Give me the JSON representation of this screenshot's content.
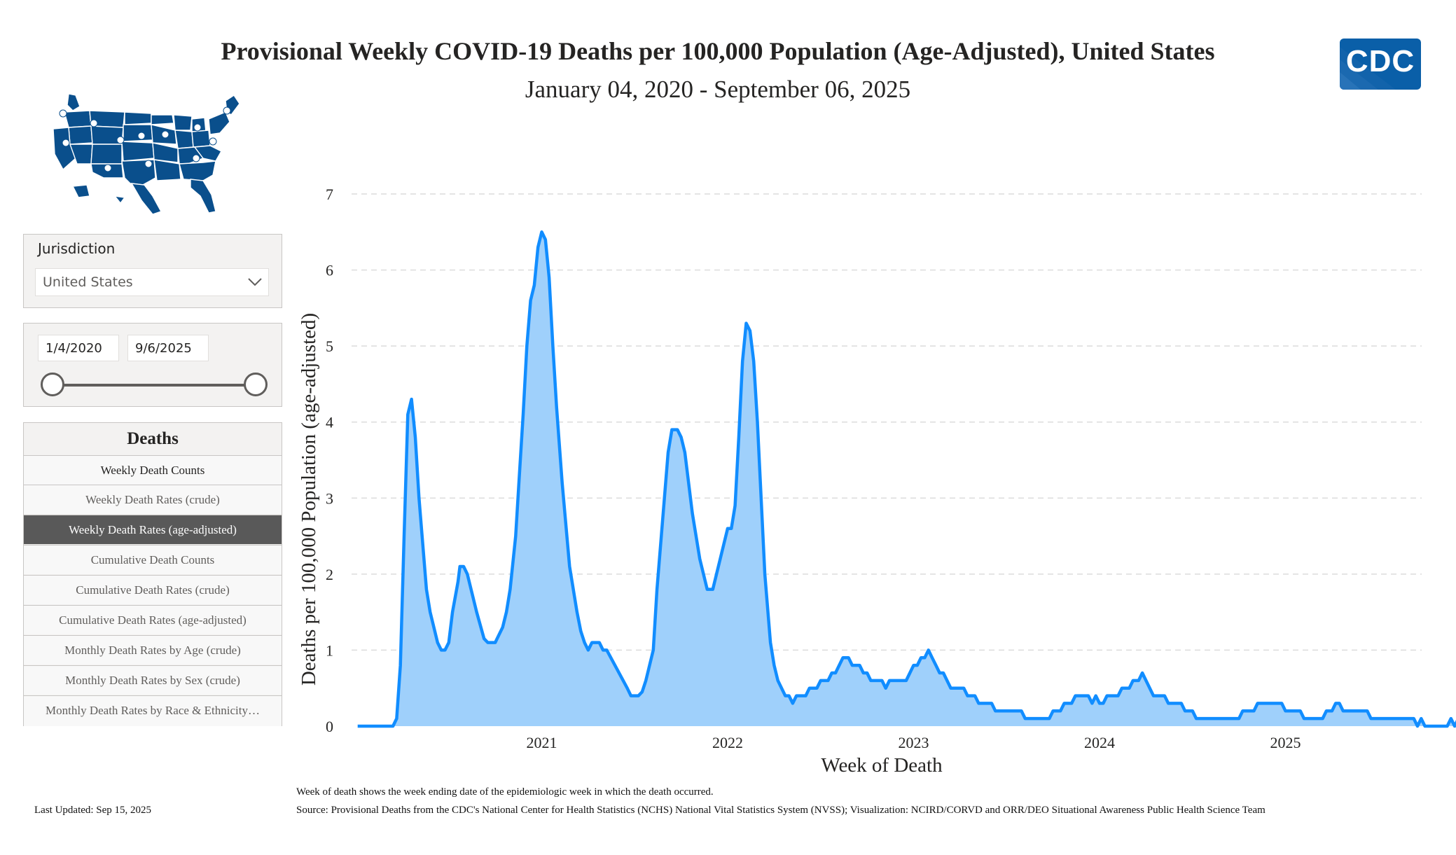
{
  "header": {
    "title": "Provisional Weekly COVID-19 Deaths per 100,000 Population (Age-Adjusted), United States",
    "subtitle": "January 04, 2020 - September 06, 2025",
    "logo_text": "CDC"
  },
  "filters": {
    "jurisdiction_label": "Jurisdiction",
    "jurisdiction_value": "United States",
    "start_date": "1/4/2020",
    "end_date": "9/6/2025"
  },
  "menu": {
    "header": "Deaths",
    "items": [
      "Weekly Death Counts",
      "Weekly Death Rates (crude)",
      "Weekly Death Rates (age-adjusted)",
      "Cumulative Death Counts",
      "Cumulative Death Rates (crude)",
      "Cumulative Death Rates (age-adjusted)",
      "Monthly Death Rates by Age (crude)",
      "Monthly Death Rates by Sex (crude)",
      "Monthly Death Rates by Race & Ethnicity…"
    ],
    "selected_index": 2
  },
  "footer": {
    "last_updated": "Last Updated: Sep 15, 2025",
    "note": "Week of death shows the week ending date of the epidemiologic week in which the death occurred.",
    "source": "Source: Provisional Deaths from the CDC's National Center for Health Statistics (NCHS) National Vital Statistics System (NVSS); Visualization: NCIRD/CORVD and ORR/DEO Situational Awareness Public Health Science Team"
  },
  "colors": {
    "line": "#118dff",
    "fill": "#9fd0fb",
    "logo": "#0a5fa8",
    "map": "#0a4f8c",
    "selected_menu": "#595959"
  },
  "chart_data": {
    "type": "area",
    "title": "Provisional Weekly COVID-19 Deaths per 100,000 Population (Age-Adjusted), United States",
    "xlabel": "Week of Death",
    "ylabel": "Deaths per 100,000 Population (age-adjusted)",
    "ylim": [
      0,
      7
    ],
    "yticks": [
      0,
      1,
      2,
      3,
      4,
      5,
      6,
      7
    ],
    "xticks": [
      "2021",
      "2022",
      "2023",
      "2024",
      "2025"
    ],
    "xrange_years": [
      2020.0,
      2025.75
    ],
    "grid": "horizontal dashed",
    "series": [
      {
        "name": "Weekly Death Rates (age-adjusted)",
        "points": [
          [
            2020.01,
            0
          ],
          [
            2020.2,
            0
          ],
          [
            2020.22,
            0.1
          ],
          [
            2020.24,
            0.8
          ],
          [
            2020.26,
            2.5
          ],
          [
            2020.28,
            4.1
          ],
          [
            2020.3,
            4.3
          ],
          [
            2020.32,
            3.8
          ],
          [
            2020.34,
            3.0
          ],
          [
            2020.38,
            1.8
          ],
          [
            2020.4,
            1.5
          ],
          [
            2020.44,
            1.1
          ],
          [
            2020.46,
            1.0
          ],
          [
            2020.48,
            1.0
          ],
          [
            2020.5,
            1.1
          ],
          [
            2020.52,
            1.5
          ],
          [
            2020.55,
            1.9
          ],
          [
            2020.56,
            2.1
          ],
          [
            2020.58,
            2.1
          ],
          [
            2020.6,
            2.0
          ],
          [
            2020.65,
            1.5
          ],
          [
            2020.69,
            1.15
          ],
          [
            2020.71,
            1.1
          ],
          [
            2020.75,
            1.1
          ],
          [
            2020.77,
            1.2
          ],
          [
            2020.79,
            1.3
          ],
          [
            2020.81,
            1.5
          ],
          [
            2020.83,
            1.8
          ],
          [
            2020.86,
            2.5
          ],
          [
            2020.88,
            3.3
          ],
          [
            2020.9,
            4.1
          ],
          [
            2020.92,
            5.0
          ],
          [
            2020.94,
            5.6
          ],
          [
            2020.96,
            5.8
          ],
          [
            2020.98,
            6.3
          ],
          [
            2021.0,
            6.5
          ],
          [
            2021.02,
            6.4
          ],
          [
            2021.04,
            5.9
          ],
          [
            2021.06,
            5.0
          ],
          [
            2021.08,
            4.2
          ],
          [
            2021.11,
            3.2
          ],
          [
            2021.15,
            2.1
          ],
          [
            2021.19,
            1.5
          ],
          [
            2021.21,
            1.25
          ],
          [
            2021.23,
            1.1
          ],
          [
            2021.25,
            1.0
          ],
          [
            2021.27,
            1.1
          ],
          [
            2021.31,
            1.1
          ],
          [
            2021.33,
            1.0
          ],
          [
            2021.35,
            1.0
          ],
          [
            2021.46,
            0.5
          ],
          [
            2021.48,
            0.4
          ],
          [
            2021.52,
            0.4
          ],
          [
            2021.54,
            0.45
          ],
          [
            2021.56,
            0.6
          ],
          [
            2021.58,
            0.8
          ],
          [
            2021.6,
            1.0
          ],
          [
            2021.62,
            1.8
          ],
          [
            2021.66,
            3.0
          ],
          [
            2021.68,
            3.6
          ],
          [
            2021.7,
            3.9
          ],
          [
            2021.73,
            3.9
          ],
          [
            2021.75,
            3.8
          ],
          [
            2021.77,
            3.6
          ],
          [
            2021.81,
            2.8
          ],
          [
            2021.85,
            2.2
          ],
          [
            2021.89,
            1.8
          ],
          [
            2021.92,
            1.8
          ],
          [
            2021.96,
            2.2
          ],
          [
            2021.98,
            2.4
          ],
          [
            2022.0,
            2.6
          ],
          [
            2022.02,
            2.6
          ],
          [
            2022.04,
            2.9
          ],
          [
            2022.06,
            3.8
          ],
          [
            2022.08,
            4.8
          ],
          [
            2022.1,
            5.3
          ],
          [
            2022.12,
            5.2
          ],
          [
            2022.14,
            4.8
          ],
          [
            2022.16,
            4.0
          ],
          [
            2022.18,
            3.0
          ],
          [
            2022.2,
            2.0
          ],
          [
            2022.23,
            1.1
          ],
          [
            2022.25,
            0.8
          ],
          [
            2022.27,
            0.6
          ],
          [
            2022.29,
            0.5
          ],
          [
            2022.31,
            0.4
          ],
          [
            2022.33,
            0.4
          ],
          [
            2022.35,
            0.3
          ],
          [
            2022.37,
            0.4
          ],
          [
            2022.42,
            0.4
          ],
          [
            2022.44,
            0.5
          ],
          [
            2022.48,
            0.5
          ],
          [
            2022.5,
            0.6
          ],
          [
            2022.54,
            0.6
          ],
          [
            2022.56,
            0.7
          ],
          [
            2022.58,
            0.7
          ],
          [
            2022.6,
            0.8
          ],
          [
            2022.62,
            0.9
          ],
          [
            2022.65,
            0.9
          ],
          [
            2022.67,
            0.8
          ],
          [
            2022.71,
            0.8
          ],
          [
            2022.73,
            0.7
          ],
          [
            2022.75,
            0.7
          ],
          [
            2022.77,
            0.6
          ],
          [
            2022.83,
            0.6
          ],
          [
            2022.85,
            0.5
          ],
          [
            2022.87,
            0.6
          ],
          [
            2022.96,
            0.6
          ],
          [
            2022.98,
            0.7
          ],
          [
            2023.0,
            0.8
          ],
          [
            2023.02,
            0.8
          ],
          [
            2023.04,
            0.9
          ],
          [
            2023.06,
            0.9
          ],
          [
            2023.08,
            1.0
          ],
          [
            2023.1,
            0.9
          ],
          [
            2023.12,
            0.8
          ],
          [
            2023.14,
            0.7
          ],
          [
            2023.16,
            0.7
          ],
          [
            2023.18,
            0.6
          ],
          [
            2023.2,
            0.5
          ],
          [
            2023.27,
            0.5
          ],
          [
            2023.29,
            0.4
          ],
          [
            2023.33,
            0.4
          ],
          [
            2023.35,
            0.3
          ],
          [
            2023.42,
            0.3
          ],
          [
            2023.44,
            0.2
          ],
          [
            2023.58,
            0.2
          ],
          [
            2023.6,
            0.1
          ],
          [
            2023.73,
            0.1
          ],
          [
            2023.75,
            0.2
          ],
          [
            2023.79,
            0.2
          ],
          [
            2023.81,
            0.3
          ],
          [
            2023.85,
            0.3
          ],
          [
            2023.87,
            0.4
          ],
          [
            2023.94,
            0.4
          ],
          [
            2023.96,
            0.3
          ],
          [
            2023.98,
            0.4
          ],
          [
            2024.0,
            0.3
          ],
          [
            2024.02,
            0.3
          ],
          [
            2024.04,
            0.4
          ],
          [
            2024.1,
            0.4
          ],
          [
            2024.12,
            0.5
          ],
          [
            2024.16,
            0.5
          ],
          [
            2024.18,
            0.6
          ],
          [
            2024.21,
            0.6
          ],
          [
            2024.23,
            0.7
          ],
          [
            2024.25,
            0.6
          ],
          [
            2024.27,
            0.5
          ],
          [
            2024.29,
            0.4
          ],
          [
            2024.35,
            0.4
          ],
          [
            2024.37,
            0.3
          ],
          [
            2024.44,
            0.3
          ],
          [
            2024.46,
            0.2
          ],
          [
            2024.5,
            0.2
          ],
          [
            2024.52,
            0.1
          ],
          [
            2024.75,
            0.1
          ],
          [
            2024.77,
            0.2
          ],
          [
            2024.83,
            0.2
          ],
          [
            2024.85,
            0.3
          ],
          [
            2024.98,
            0.3
          ],
          [
            2025.0,
            0.2
          ],
          [
            2025.08,
            0.2
          ],
          [
            2025.1,
            0.1
          ],
          [
            2025.2,
            0.1
          ],
          [
            2025.22,
            0.2
          ],
          [
            2025.25,
            0.2
          ],
          [
            2025.27,
            0.3
          ],
          [
            2025.29,
            0.3
          ],
          [
            2025.31,
            0.2
          ],
          [
            2025.44,
            0.2
          ],
          [
            2025.46,
            0.1
          ],
          [
            2025.69,
            0.1
          ],
          [
            2025.71,
            0.0
          ],
          [
            2025.73,
            0.1
          ],
          [
            2025.75,
            0.0
          ],
          [
            2025.87,
            0.0
          ],
          [
            2025.89,
            0.1
          ],
          [
            2025.91,
            0.0
          ],
          [
            2025.93,
            0.1
          ],
          [
            2025.98,
            0.1
          ],
          [
            2026.0,
            0.0
          ]
        ]
      }
    ]
  }
}
